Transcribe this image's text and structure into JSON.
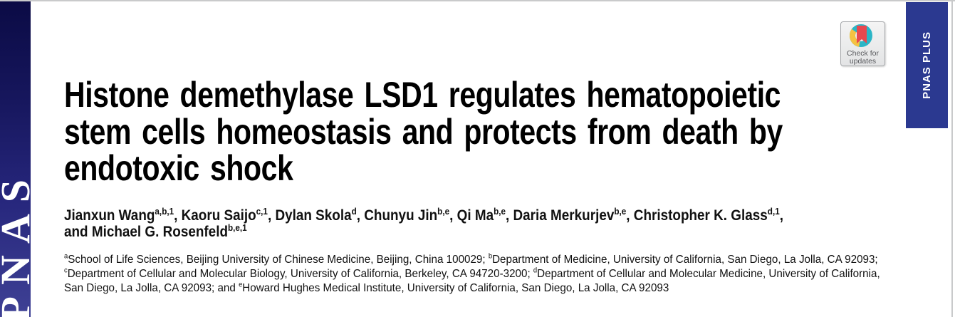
{
  "journal": {
    "logo_text": "PNAS",
    "banner_label": "PNAS PLUS",
    "sidebar_gradient_top": "#0b0b45",
    "sidebar_gradient_bottom": "#3f4195",
    "banner_background": "#2b3990",
    "hairline_color": "#c9cacb"
  },
  "crossmark": {
    "label_line1": "Check for",
    "label_line2": "updates",
    "ring_teal": "#2ab5c6",
    "ring_yellow": "#f5c242",
    "bookmark_red": "#e8484f",
    "badge_background": "#eeeeee",
    "badge_border": "#a7a9ac",
    "label_color": "#595a5e"
  },
  "article": {
    "title_lines": [
      "Histone demethylase LSD1 regulates hematopoietic",
      "stem cells homeostasis and protects from death by",
      "endotoxic shock"
    ],
    "authors": [
      {
        "text": "Jianxun Wang",
        "sup": "a,b,1",
        "sep": ", "
      },
      {
        "text": "Kaoru Saijo",
        "sup": "c,1",
        "sep": ", "
      },
      {
        "text": "Dylan Skola",
        "sup": "d",
        "sep": ", "
      },
      {
        "text": "Chunyu Jin",
        "sup": "b,e",
        "sep": ", "
      },
      {
        "text": "Qi Ma",
        "sup": "b,e",
        "sep": ", "
      },
      {
        "text": "Daria Merkurjev",
        "sup": "b,e",
        "sep": ", "
      },
      {
        "text": "Christopher K. Glass",
        "sup": "d,1",
        "sep": ",",
        "br": true
      },
      {
        "text": "and Michael G. Rosenfeld",
        "sup": "b,e,1",
        "sep": ""
      }
    ],
    "affiliations": [
      {
        "presup": "a",
        "text": "School of Life Sciences, Beijing University of Chinese Medicine, Beijing, China 100029; "
      },
      {
        "presup": "b",
        "text": "Department of Medicine, University of California, San Diego, La Jolla, CA 92093; "
      },
      {
        "presup": "c",
        "text": "Department of Cellular and Molecular Biology, University of California, Berkeley, CA 94720-3200; "
      },
      {
        "presup": "d",
        "text": "Department of Cellular and Molecular Medicine, University of California, San Diego, La Jolla, CA 92093; and "
      },
      {
        "presup": "e",
        "text": "Howard Hughes Medical Institute, University of California, San Diego, La Jolla, CA 92093"
      }
    ]
  }
}
